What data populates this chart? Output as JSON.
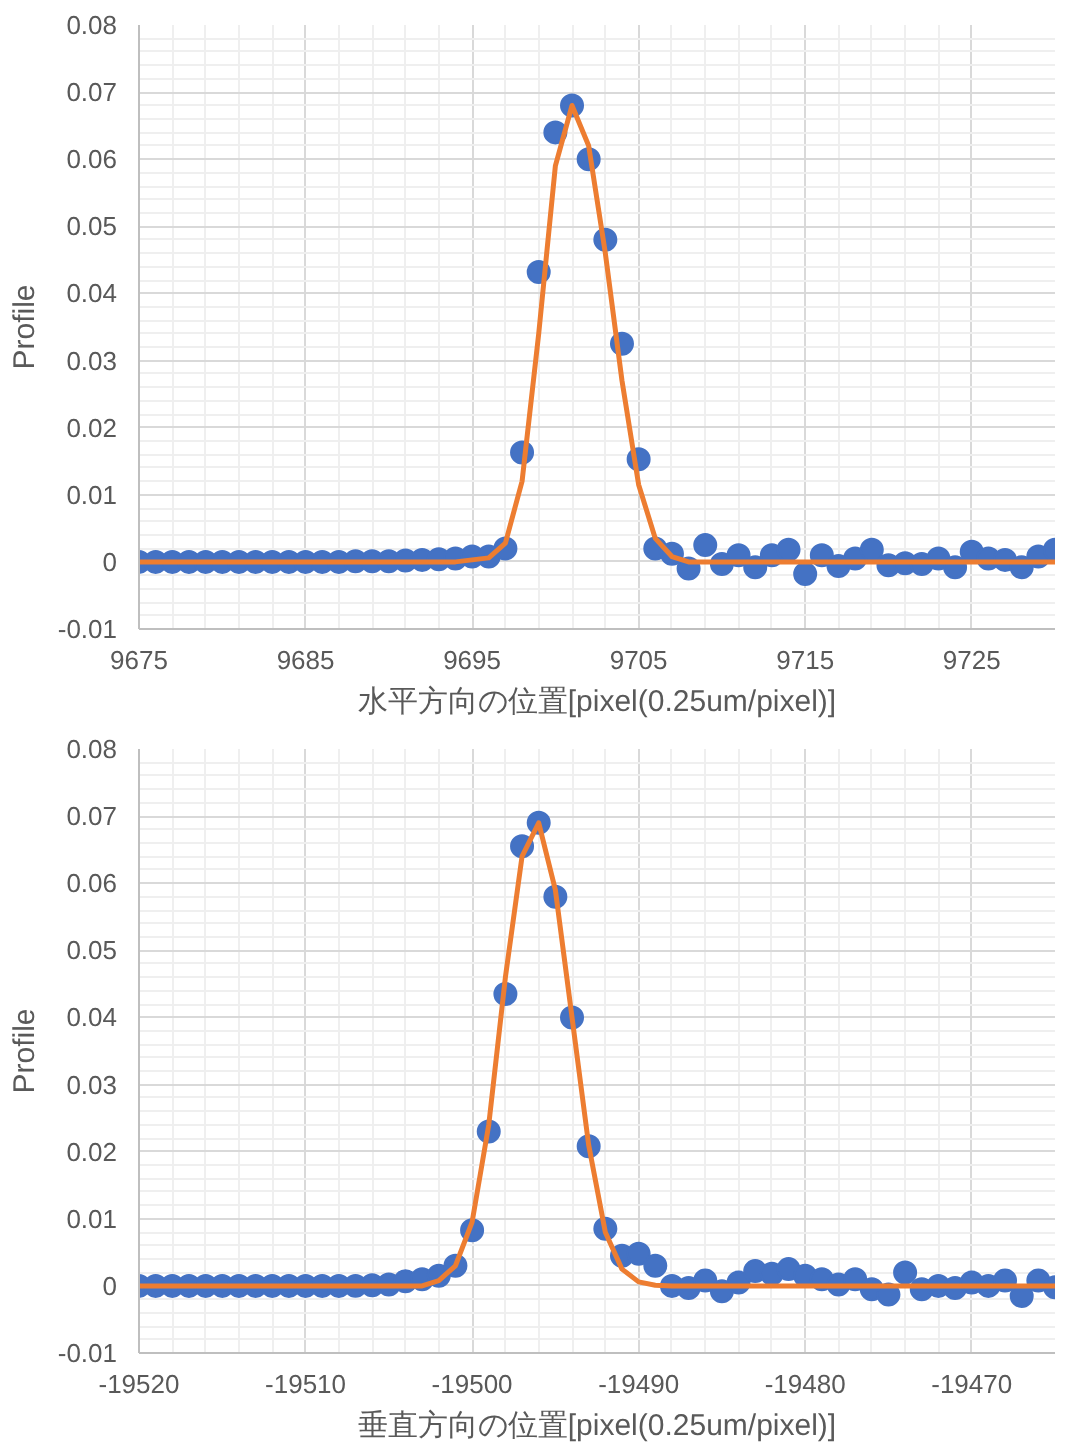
{
  "chart_data": [
    {
      "type": "scatter",
      "xlabel": "水平方向の位置[pixel(0.25um/pixel)]",
      "ylabel": "Profile",
      "xlim": [
        9675,
        9730
      ],
      "xticks": [
        9675,
        9685,
        9695,
        9705,
        9715,
        9725
      ],
      "ylim": [
        -0.01,
        0.08
      ],
      "yticks": [
        -0.01,
        0,
        0.01,
        0.02,
        0.03,
        0.04,
        0.05,
        0.06,
        0.07,
        0.08
      ],
      "grid": true,
      "marker": "circle",
      "series": [
        {
          "color": "#4472c4",
          "x": [
            9675,
            9676,
            9677,
            9678,
            9679,
            9680,
            9681,
            9682,
            9683,
            9684,
            9685,
            9686,
            9687,
            9688,
            9689,
            9690,
            9691,
            9692,
            9693,
            9694,
            9695,
            9696,
            9697,
            9698,
            9699,
            9700,
            9701,
            9702,
            9703,
            9704,
            9705,
            9706,
            9707,
            9708,
            9709,
            9710,
            9711,
            9712,
            9713,
            9714,
            9715,
            9716,
            9717,
            9718,
            9719,
            9720,
            9721,
            9722,
            9723,
            9724,
            9725,
            9726,
            9727,
            9728,
            9729,
            9730
          ],
          "values": [
            0,
            0,
            0,
            0,
            0,
            0,
            0,
            0,
            0,
            0,
            0,
            0,
            0,
            0.0001,
            0.0001,
            0.0001,
            0.0002,
            0.0003,
            0.0004,
            0.0005,
            0.0008,
            0.0008,
            0.002,
            0.0163,
            0.0432,
            0.064,
            0.068,
            0.06,
            0.048,
            0.0325,
            0.0153,
            0.002,
            0.0012,
            -0.001,
            0.0025,
            -0.0003,
            0.001,
            -0.0008,
            0.001,
            0.0018,
            -0.0018,
            0.001,
            -0.0006,
            0.0005,
            0.0018,
            -0.0005,
            -0.0002,
            -0.0003,
            0.0005,
            -0.0008,
            0.0015,
            0.0005,
            0.0003,
            -0.0008,
            0.0008,
            0.0018
          ]
        },
        {
          "type": "line",
          "color": "#ed7d31",
          "marker": "none",
          "x": [
            9675,
            9694,
            9696,
            9697,
            9698,
            9699,
            9700,
            9701,
            9702,
            9703,
            9704,
            9705,
            9706,
            9707,
            9708,
            9730
          ],
          "values": [
            0,
            0,
            0.0006,
            0.0028,
            0.012,
            0.034,
            0.059,
            0.068,
            0.062,
            0.046,
            0.027,
            0.0115,
            0.0035,
            0.0008,
            0,
            0
          ]
        }
      ]
    },
    {
      "type": "scatter",
      "xlabel": "垂直方向の位置[pixel(0.25um/pixel)]",
      "ylabel": "Profile",
      "xlim": [
        -19520,
        -19465
      ],
      "xticks": [
        -19520,
        -19510,
        -19500,
        -19490,
        -19480,
        -19470
      ],
      "ylim": [
        -0.01,
        0.08
      ],
      "yticks": [
        -0.01,
        0,
        0.01,
        0.02,
        0.03,
        0.04,
        0.05,
        0.06,
        0.07,
        0.08
      ],
      "grid": true,
      "marker": "circle",
      "series": [
        {
          "color": "#4472c4",
          "x": [
            -19520,
            -19519,
            -19518,
            -19517,
            -19516,
            -19515,
            -19514,
            -19513,
            -19512,
            -19511,
            -19510,
            -19509,
            -19508,
            -19507,
            -19506,
            -19505,
            -19504,
            -19503,
            -19502,
            -19501,
            -19500,
            -19499,
            -19498,
            -19497,
            -19496,
            -19495,
            -19494,
            -19493,
            -19492,
            -19491,
            -19490,
            -19489,
            -19488,
            -19487,
            -19486,
            -19485,
            -19484,
            -19483,
            -19482,
            -19481,
            -19480,
            -19479,
            -19478,
            -19477,
            -19476,
            -19475,
            -19474,
            -19473,
            -19472,
            -19471,
            -19470,
            -19469,
            -19468,
            -19467,
            -19466,
            -19465
          ],
          "values": [
            0,
            0,
            0,
            0,
            0,
            0,
            0,
            0,
            0,
            0,
            0,
            0,
            0,
            0,
            0.0001,
            0.0002,
            0.0007,
            0.001,
            0.0015,
            0.003,
            0.0083,
            0.023,
            0.0435,
            0.0655,
            0.069,
            0.058,
            0.04,
            0.0208,
            0.0085,
            0.0045,
            0.0048,
            0.003,
            0,
            -0.0003,
            0.0008,
            -0.0008,
            0.0005,
            0.0022,
            0.0018,
            0.0025,
            0.0015,
            0.001,
            0.0002,
            0.001,
            -0.0005,
            -0.0013,
            0.002,
            -0.0005,
            0,
            -0.0003,
            0.0005,
            0,
            0.0008,
            -0.0015,
            0.0008,
            -0.0002
          ]
        },
        {
          "type": "line",
          "color": "#ed7d31",
          "marker": "none",
          "x": [
            -19520,
            -19503,
            -19502,
            -19501,
            -19500,
            -19499,
            -19498,
            -19497,
            -19496,
            -19495,
            -19494,
            -19493,
            -19492,
            -19491,
            -19490,
            -19489,
            -19488,
            -19465
          ],
          "values": [
            0,
            0,
            0.0008,
            0.003,
            0.0095,
            0.024,
            0.046,
            0.064,
            0.069,
            0.059,
            0.04,
            0.021,
            0.008,
            0.0025,
            0.0006,
            0.0001,
            0,
            0
          ]
        }
      ]
    }
  ]
}
